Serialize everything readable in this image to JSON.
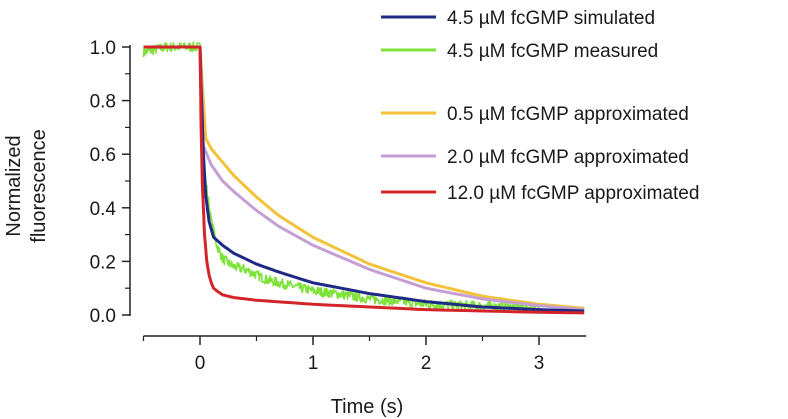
{
  "chart_data": {
    "type": "line",
    "title": "",
    "xlabel": "Time (s)",
    "ylabel_lines": [
      "Normalized",
      "fluorescence"
    ],
    "xlim": [
      -0.5,
      3.4
    ],
    "ylim": [
      0.0,
      1.05
    ],
    "x_major_ticks": [
      0,
      1,
      2,
      3
    ],
    "x_minor_ticks": [
      -0.5,
      0.5,
      1.5,
      2.5
    ],
    "y_ticks": [
      0.0,
      0.2,
      0.4,
      0.6,
      0.8,
      1.0
    ],
    "x_tick_labels": [
      "0",
      "1",
      "2",
      "3"
    ],
    "y_tick_labels": [
      "0.0",
      "0.2",
      "0.4",
      "0.6",
      "0.8",
      "1.0"
    ],
    "grid": false,
    "legend_position": "top-right",
    "series": [
      {
        "name": "4.5 µM fcGMP measured",
        "color": "#7ee23a",
        "style": "noisy",
        "noise": 0.018,
        "x": [
          -0.5,
          -0.3,
          0.0,
          0.02,
          0.05,
          0.1,
          0.15,
          0.2,
          0.3,
          0.4,
          0.5,
          0.6,
          0.8,
          1.0,
          1.2,
          1.5,
          1.8,
          2.0,
          2.4,
          2.8,
          3.0
        ],
        "y": [
          0.98,
          1.0,
          1.0,
          0.7,
          0.5,
          0.35,
          0.26,
          0.21,
          0.18,
          0.17,
          0.15,
          0.13,
          0.11,
          0.09,
          0.08,
          0.06,
          0.05,
          0.04,
          0.035,
          0.03,
          0.025
        ]
      },
      {
        "name": "0.5 µM fcGMP approximated",
        "color": "#f2c23a",
        "style": "smooth",
        "x": [
          -0.5,
          0.0,
          0.05,
          0.1,
          0.3,
          0.5,
          0.7,
          1.0,
          1.3,
          1.5,
          2.0,
          2.5,
          3.0,
          3.4
        ],
        "y": [
          1.0,
          1.0,
          0.66,
          0.62,
          0.52,
          0.44,
          0.37,
          0.29,
          0.23,
          0.19,
          0.12,
          0.07,
          0.04,
          0.025
        ]
      },
      {
        "name": "2.0 µM fcGMP approximated",
        "color": "#c59ed3",
        "style": "smooth",
        "x": [
          -0.5,
          0.0,
          0.03,
          0.06,
          0.1,
          0.2,
          0.3,
          0.5,
          0.7,
          1.0,
          1.5,
          2.0,
          2.5,
          3.0,
          3.4
        ],
        "y": [
          1.0,
          1.0,
          0.63,
          0.6,
          0.56,
          0.5,
          0.46,
          0.39,
          0.33,
          0.26,
          0.17,
          0.1,
          0.06,
          0.035,
          0.02
        ]
      },
      {
        "name": "4.5 µM fcGMP simulated",
        "color": "#1f2a86",
        "style": "smooth",
        "x": [
          -0.5,
          0.0,
          0.01,
          0.03,
          0.05,
          0.08,
          0.12,
          0.2,
          0.3,
          0.5,
          0.7,
          1.0,
          1.5,
          2.0,
          2.5,
          3.0,
          3.4
        ],
        "y": [
          1.0,
          1.0,
          0.85,
          0.6,
          0.45,
          0.35,
          0.29,
          0.26,
          0.23,
          0.19,
          0.16,
          0.12,
          0.08,
          0.05,
          0.03,
          0.02,
          0.015
        ]
      },
      {
        "name": "12.0 µM fcGMP approximated",
        "color": "#d4242a",
        "style": "smooth",
        "x": [
          -0.5,
          0.0,
          0.01,
          0.02,
          0.04,
          0.06,
          0.08,
          0.1,
          0.12,
          0.15,
          0.2,
          0.3,
          0.5,
          1.0,
          1.5,
          2.0,
          3.0,
          3.4
        ],
        "y": [
          1.0,
          1.0,
          0.7,
          0.5,
          0.3,
          0.2,
          0.15,
          0.12,
          0.1,
          0.09,
          0.075,
          0.065,
          0.055,
          0.04,
          0.03,
          0.02,
          0.01,
          0.008
        ]
      }
    ],
    "legend": [
      {
        "label": "4.5 µM fcGMP simulated",
        "color": "#1f2a86"
      },
      {
        "label": "4.5 µM fcGMP measured",
        "color": "#7ee23a"
      },
      {
        "label": "0.5 µM fcGMP approximated",
        "color": "#f2c23a"
      },
      {
        "label": "2.0 µM fcGMP approximated",
        "color": "#c59ed3"
      },
      {
        "label": "12.0 µM fcGMP approximated",
        "color": "#d4242a"
      }
    ]
  }
}
